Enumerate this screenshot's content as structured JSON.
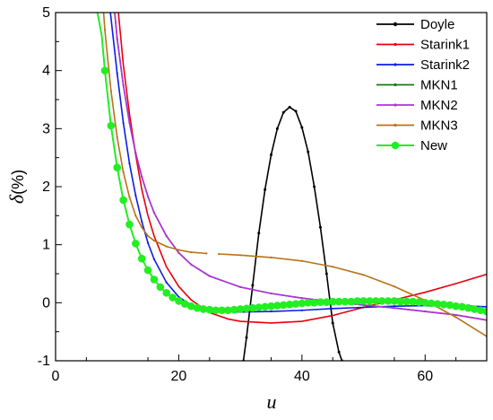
{
  "chart_data": {
    "type": "line",
    "title": "",
    "xlabel": "u",
    "ylabel_symbol": "δ",
    "ylabel_unit": "(%)",
    "xlim": [
      0,
      70
    ],
    "ylim": [
      -1,
      5
    ],
    "x_ticks": [
      0,
      20,
      40,
      60
    ],
    "y_ticks": [
      -1,
      0,
      1,
      2,
      3,
      4,
      5
    ],
    "grid": false,
    "legend_position": "top-right",
    "series": [
      {
        "name": "Doyle",
        "color": "#000000",
        "marker": "small-dot",
        "x": [
          30.5,
          31,
          32,
          33,
          34,
          35,
          36,
          37,
          38,
          39,
          40,
          41,
          42,
          43,
          44,
          45,
          46,
          46.5
        ],
        "y": [
          -1.0,
          -0.6,
          0.3,
          1.2,
          1.95,
          2.55,
          3.0,
          3.28,
          3.37,
          3.3,
          3.02,
          2.6,
          2.0,
          1.3,
          0.5,
          -0.35,
          -0.85,
          -1.0
        ]
      },
      {
        "name": "Starink1",
        "color": "#e8000b",
        "marker": "none",
        "x": [
          10.2,
          11,
          12,
          13,
          14,
          15,
          16,
          18,
          20,
          22,
          25,
          28,
          30,
          35,
          40,
          45,
          50,
          55,
          60,
          65,
          70
        ],
        "y": [
          5.0,
          4.1,
          3.25,
          2.55,
          1.95,
          1.5,
          1.15,
          0.62,
          0.28,
          0.05,
          -0.17,
          -0.28,
          -0.32,
          -0.35,
          -0.32,
          -0.22,
          -0.08,
          0.05,
          0.18,
          0.33,
          0.49
        ]
      },
      {
        "name": "Starink2",
        "color": "#0a1ee6",
        "marker": "tiny-tick",
        "x": [
          8.9,
          10,
          11,
          12,
          13,
          14,
          15,
          16,
          18,
          20,
          22,
          25,
          28,
          30,
          35,
          40,
          45,
          50,
          55,
          60,
          65,
          70
        ],
        "y": [
          5.0,
          3.95,
          3.1,
          2.4,
          1.85,
          1.4,
          1.03,
          0.75,
          0.35,
          0.1,
          -0.04,
          -0.12,
          -0.15,
          -0.16,
          -0.15,
          -0.13,
          -0.1,
          -0.08,
          -0.06,
          -0.05,
          -0.05,
          -0.07
        ]
      },
      {
        "name": "MKN1",
        "color": "#157a15",
        "marker": "tiny-tick",
        "x": [
          9.6,
          10,
          11,
          12,
          13,
          14,
          15,
          16,
          18,
          20,
          22,
          25,
          30,
          35,
          40,
          45,
          50,
          55,
          60,
          65,
          70
        ],
        "y": [
          5.0,
          4.55,
          3.75,
          3.1,
          2.58,
          2.17,
          1.83,
          1.55,
          1.15,
          0.86,
          0.66,
          0.46,
          0.27,
          0.16,
          0.08,
          0.02,
          -0.04,
          -0.09,
          -0.15,
          -0.21,
          -0.3
        ]
      },
      {
        "name": "MKN2",
        "color": "#b42ee0",
        "marker": "tiny-tick",
        "x": [
          9.6,
          10,
          11,
          12,
          13,
          14,
          15,
          16,
          18,
          20,
          22,
          25,
          30,
          35,
          40,
          45,
          50,
          55,
          60,
          65,
          70
        ],
        "y": [
          5.0,
          4.55,
          3.75,
          3.1,
          2.58,
          2.17,
          1.83,
          1.55,
          1.15,
          0.86,
          0.66,
          0.46,
          0.27,
          0.16,
          0.08,
          0.02,
          -0.04,
          -0.09,
          -0.15,
          -0.21,
          -0.3
        ]
      },
      {
        "name": "MKN3",
        "color": "#b87316",
        "marker": "tiny-tick",
        "x": [
          7.8,
          8,
          9,
          10,
          11,
          12,
          13,
          14,
          15,
          16,
          18,
          20,
          22,
          24.5
        ],
        "y": [
          5.0,
          4.7,
          3.65,
          2.85,
          2.25,
          1.82,
          1.5,
          1.3,
          1.15,
          1.07,
          0.97,
          0.91,
          0.87,
          0.85
        ],
        "x2": [
          26.5,
          30,
          35,
          40,
          45,
          50,
          55,
          60,
          65,
          70
        ],
        "y2": [
          0.84,
          0.82,
          0.78,
          0.72,
          0.62,
          0.48,
          0.28,
          0.04,
          -0.25,
          -0.58
        ]
      },
      {
        "name": "New",
        "color": "#22ee22",
        "marker": "big-dot",
        "x": [
          6.8,
          7.5,
          8,
          9,
          10,
          11,
          12,
          13,
          14,
          15,
          16,
          17,
          18,
          19,
          20,
          21,
          22,
          23,
          24,
          25,
          26,
          27,
          28,
          29,
          30,
          31,
          32,
          33,
          34,
          35,
          36,
          37,
          38,
          39,
          40,
          41,
          42,
          43,
          44,
          45,
          46,
          47,
          48,
          49,
          50,
          51,
          52,
          53,
          54,
          55,
          56,
          57,
          58,
          59,
          60,
          61,
          62,
          63,
          64,
          65,
          66,
          67,
          68,
          69,
          70
        ],
        "y": [
          5.0,
          4.6,
          4.0,
          3.05,
          2.33,
          1.77,
          1.35,
          1.02,
          0.76,
          0.56,
          0.4,
          0.27,
          0.17,
          0.09,
          0.03,
          -0.02,
          -0.06,
          -0.09,
          -0.11,
          -0.12,
          -0.13,
          -0.13,
          -0.13,
          -0.12,
          -0.11,
          -0.1,
          -0.09,
          -0.08,
          -0.07,
          -0.06,
          -0.05,
          -0.04,
          -0.03,
          -0.02,
          -0.01,
          0.0,
          0.0,
          0.01,
          0.01,
          0.02,
          0.02,
          0.02,
          0.02,
          0.03,
          0.03,
          0.03,
          0.03,
          0.03,
          0.03,
          0.03,
          0.02,
          0.02,
          0.02,
          0.01,
          0.0,
          -0.01,
          -0.02,
          -0.03,
          -0.04,
          -0.06,
          -0.07,
          -0.09,
          -0.11,
          -0.13,
          -0.15
        ],
        "marker_start_index": 2
      }
    ]
  }
}
